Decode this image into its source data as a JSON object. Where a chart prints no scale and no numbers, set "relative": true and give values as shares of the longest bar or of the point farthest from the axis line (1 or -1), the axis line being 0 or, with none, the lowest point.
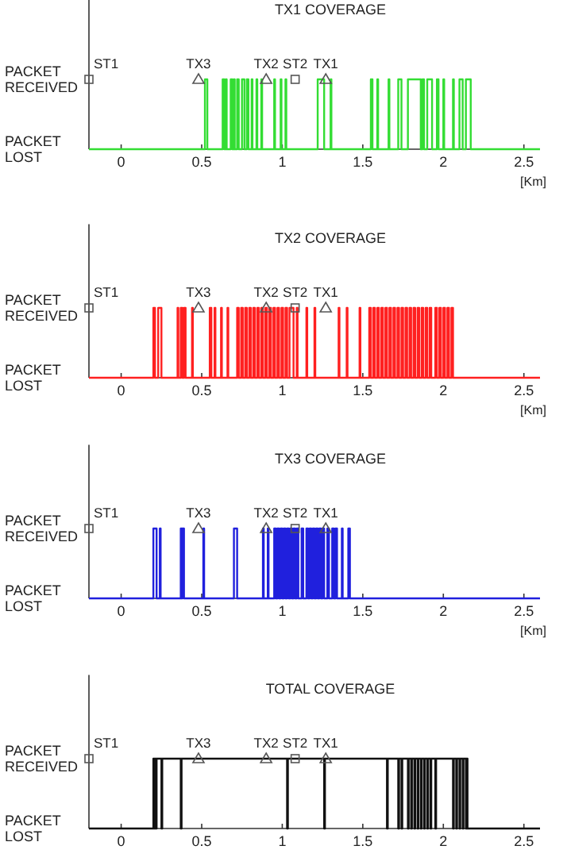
{
  "chart_data": [
    {
      "type": "step",
      "title": "TX1 COVERAGE",
      "xlabel": "[Km]",
      "xlim": [
        -0.2,
        2.6
      ],
      "xticks": [
        0,
        0.5,
        1,
        1.5,
        2,
        2.5
      ],
      "relative": true,
      "annotations": [
        "PACKET RECEIVED",
        "PACKET LOST"
      ],
      "series": [
        {
          "color": "#33dd33",
          "x": [
            -0.2,
            0.52,
            0.535,
            0.63,
            0.64,
            0.65,
            0.655,
            0.68,
            0.69,
            0.7,
            0.705,
            0.72,
            0.73,
            0.75,
            0.765,
            0.78,
            0.79,
            0.81,
            0.815,
            0.84,
            0.845,
            0.87,
            0.875,
            0.95,
            0.955,
            0.99,
            0.995,
            1.02,
            1.025,
            1.22,
            1.26,
            1.3,
            1.305,
            1.55,
            1.56,
            1.59,
            1.595,
            1.66,
            1.665,
            1.72,
            1.74,
            1.78,
            1.86,
            1.87,
            1.88,
            1.9,
            1.93,
            1.96,
            1.97,
            2.0,
            2.005,
            2.06,
            2.065,
            2.1,
            2.12,
            2.14,
            2.17,
            2.6
          ],
          "values": [
            0,
            1,
            0,
            1,
            0,
            1,
            0,
            1,
            0,
            1,
            0,
            1,
            0,
            1,
            0,
            1,
            0,
            1,
            0,
            1,
            0,
            1,
            0,
            1,
            0,
            1,
            0,
            1,
            0,
            1,
            0,
            1,
            0,
            1,
            0,
            1,
            0,
            1,
            0,
            1,
            0,
            1,
            0,
            1,
            0,
            1,
            0,
            1,
            0,
            1,
            0,
            1,
            0,
            1,
            0,
            1,
            0,
            0
          ]
        },
        {
          "type": "scatter",
          "name": "ST1",
          "marker": "square",
          "color": "#555555",
          "x": [
            -0.2
          ],
          "values": [
            1
          ]
        },
        {
          "type": "scatter",
          "name": "TX3",
          "marker": "triangle",
          "color": "#555555",
          "x": [
            0.48
          ],
          "values": [
            1
          ]
        },
        {
          "type": "scatter",
          "name": "TX2",
          "marker": "triangle",
          "color": "#555555",
          "x": [
            0.9
          ],
          "values": [
            1
          ]
        },
        {
          "type": "scatter",
          "name": "ST2",
          "marker": "square",
          "color": "#555555",
          "x": [
            1.08
          ],
          "values": [
            1
          ]
        },
        {
          "type": "scatter",
          "name": "TX1",
          "marker": "triangle",
          "color": "#555555",
          "x": [
            1.27
          ],
          "values": [
            1
          ]
        }
      ]
    },
    {
      "type": "step",
      "title": "TX2 COVERAGE",
      "xlabel": "[Km]",
      "xlim": [
        -0.2,
        2.6
      ],
      "xticks": [
        0,
        0.5,
        1,
        1.5,
        2,
        2.5
      ],
      "relative": true,
      "annotations": [
        "PACKET RECEIVED",
        "PACKET LOST"
      ],
      "series": [
        {
          "color": "#ff2020",
          "x": [
            -0.2,
            0.2,
            0.21,
            0.23,
            0.25,
            0.35,
            0.355,
            0.37,
            0.38,
            0.39,
            0.4,
            0.44,
            0.445,
            0.55,
            0.56,
            0.58,
            0.585,
            0.62,
            0.625,
            0.66,
            0.665,
            0.72,
            0.73,
            0.745,
            0.755,
            0.77,
            0.78,
            0.795,
            0.805,
            0.82,
            0.83,
            0.845,
            0.855,
            0.87,
            0.88,
            0.895,
            0.905,
            0.92,
            0.93,
            0.945,
            0.955,
            0.97,
            0.98,
            0.995,
            1.005,
            1.02,
            1.03,
            1.045,
            1.07,
            1.09,
            1.095,
            1.15,
            1.155,
            1.2,
            1.205,
            1.35,
            1.355,
            1.4,
            1.405,
            1.48,
            1.485,
            1.54,
            1.55,
            1.565,
            1.575,
            1.59,
            1.6,
            1.615,
            1.625,
            1.64,
            1.65,
            1.665,
            1.675,
            1.69,
            1.7,
            1.715,
            1.725,
            1.74,
            1.75,
            1.765,
            1.775,
            1.79,
            1.8,
            1.815,
            1.825,
            1.84,
            1.85,
            1.865,
            1.875,
            1.89,
            1.9,
            1.915,
            1.925,
            1.95,
            1.96,
            1.975,
            1.985,
            2.0,
            2.01,
            2.025,
            2.035,
            2.05,
            2.06,
            2.6
          ],
          "values": [
            0,
            1,
            0,
            1,
            0,
            1,
            0,
            1,
            0,
            1,
            0,
            1,
            0,
            1,
            0,
            1,
            0,
            1,
            0,
            1,
            0,
            1,
            0,
            1,
            0,
            1,
            0,
            1,
            0,
            1,
            0,
            1,
            0,
            1,
            0,
            1,
            0,
            1,
            0,
            1,
            0,
            1,
            0,
            1,
            0,
            1,
            0,
            1,
            0,
            1,
            0,
            1,
            0,
            1,
            0,
            1,
            0,
            1,
            0,
            1,
            0,
            1,
            0,
            1,
            0,
            1,
            0,
            1,
            0,
            1,
            0,
            1,
            0,
            1,
            0,
            1,
            0,
            1,
            0,
            1,
            0,
            1,
            0,
            1,
            0,
            1,
            0,
            1,
            0,
            1,
            0,
            1,
            0,
            1,
            0,
            1,
            0,
            1,
            0,
            1,
            0,
            1,
            0,
            0
          ]
        },
        {
          "type": "scatter",
          "name": "ST1",
          "marker": "square",
          "color": "#555555",
          "x": [
            -0.2
          ],
          "values": [
            1
          ]
        },
        {
          "type": "scatter",
          "name": "TX3",
          "marker": "triangle",
          "color": "#555555",
          "x": [
            0.48
          ],
          "values": [
            1
          ]
        },
        {
          "type": "scatter",
          "name": "TX2",
          "marker": "triangle",
          "color": "#555555",
          "x": [
            0.9
          ],
          "values": [
            1
          ]
        },
        {
          "type": "scatter",
          "name": "ST2",
          "marker": "square",
          "color": "#555555",
          "x": [
            1.08
          ],
          "values": [
            1
          ]
        },
        {
          "type": "scatter",
          "name": "TX1",
          "marker": "triangle",
          "color": "#555555",
          "x": [
            1.27
          ],
          "values": [
            1
          ]
        }
      ]
    },
    {
      "type": "step",
      "title": "TX3 COVERAGE",
      "xlabel": "[Km]",
      "xlim": [
        -0.2,
        2.6
      ],
      "xticks": [
        0,
        0.5,
        1,
        1.5,
        2,
        2.5
      ],
      "relative": true,
      "annotations": [
        "PACKET RECEIVED",
        "PACKET LOST"
      ],
      "series": [
        {
          "color": "#2020dd",
          "x": [
            -0.2,
            0.2,
            0.22,
            0.24,
            0.245,
            0.37,
            0.375,
            0.38,
            0.39,
            0.51,
            0.515,
            0.7,
            0.72,
            0.88,
            0.885,
            0.91,
            0.915,
            0.95,
            0.96,
            0.97,
            0.98,
            0.99,
            1.0,
            1.01,
            1.02,
            1.03,
            1.04,
            1.05,
            1.06,
            1.07,
            1.08,
            1.09,
            1.1,
            1.12,
            1.13,
            1.15,
            1.16,
            1.17,
            1.18,
            1.19,
            1.2,
            1.21,
            1.22,
            1.23,
            1.24,
            1.25,
            1.26,
            1.28,
            1.29,
            1.31,
            1.32,
            1.33,
            1.34,
            1.37,
            1.375,
            1.41,
            1.42,
            2.6
          ],
          "values": [
            0,
            1,
            0,
            1,
            0,
            1,
            0,
            1,
            0,
            1,
            0,
            1,
            0,
            1,
            0,
            1,
            0,
            1,
            0,
            1,
            0,
            1,
            0,
            1,
            0,
            1,
            0,
            1,
            0,
            1,
            0,
            1,
            0,
            1,
            0,
            1,
            0,
            1,
            0,
            1,
            0,
            1,
            0,
            1,
            0,
            1,
            0,
            1,
            0,
            1,
            0,
            1,
            0,
            1,
            0,
            1,
            0,
            0
          ]
        },
        {
          "type": "scatter",
          "name": "ST1",
          "marker": "square",
          "color": "#555555",
          "x": [
            -0.2
          ],
          "values": [
            1
          ]
        },
        {
          "type": "scatter",
          "name": "TX3",
          "marker": "triangle",
          "color": "#555555",
          "x": [
            0.48
          ],
          "values": [
            1
          ]
        },
        {
          "type": "scatter",
          "name": "TX2",
          "marker": "triangle",
          "color": "#555555",
          "x": [
            0.9
          ],
          "values": [
            1
          ]
        },
        {
          "type": "scatter",
          "name": "ST2",
          "marker": "square",
          "color": "#555555",
          "x": [
            1.08
          ],
          "values": [
            1
          ]
        },
        {
          "type": "scatter",
          "name": "TX1",
          "marker": "triangle",
          "color": "#555555",
          "x": [
            1.27
          ],
          "values": [
            1
          ]
        }
      ]
    },
    {
      "type": "step",
      "title": "TOTAL COVERAGE",
      "xlim": [
        -0.2,
        2.6
      ],
      "xticks": [
        0,
        0.5,
        1,
        1.5,
        2,
        2.5
      ],
      "relative": true,
      "annotations": [
        "PACKET RECEIVED",
        "PACKET LOST"
      ],
      "series": [
        {
          "color": "#111111",
          "x": [
            -0.2,
            0.2,
            0.205,
            0.21,
            0.215,
            0.22,
            0.25,
            0.255,
            0.37,
            0.375,
            1.03,
            1.035,
            1.26,
            1.265,
            1.65,
            1.655,
            1.72,
            1.725,
            1.74,
            1.745,
            1.78,
            1.785,
            1.8,
            1.805,
            1.82,
            1.825,
            1.84,
            1.845,
            1.86,
            1.865,
            1.88,
            1.885,
            1.9,
            1.905,
            1.92,
            1.925,
            1.95,
            1.955,
            2.06,
            2.065,
            2.08,
            2.085,
            2.1,
            2.105,
            2.12,
            2.125,
            2.14,
            2.145,
            2.15,
            2.6
          ],
          "values": [
            0,
            1,
            0,
            1,
            0,
            1,
            0,
            1,
            0,
            1,
            0,
            1,
            0,
            1,
            0,
            1,
            0,
            1,
            0,
            1,
            0,
            1,
            0,
            1,
            0,
            1,
            0,
            1,
            0,
            1,
            0,
            1,
            0,
            1,
            0,
            1,
            0,
            1,
            0,
            1,
            0,
            1,
            0,
            1,
            0,
            1,
            0,
            1,
            0,
            0
          ]
        },
        {
          "type": "scatter",
          "name": "ST1",
          "marker": "square",
          "color": "#555555",
          "x": [
            -0.2
          ],
          "values": [
            1
          ]
        },
        {
          "type": "scatter",
          "name": "TX3",
          "marker": "triangle",
          "color": "#555555",
          "x": [
            0.48
          ],
          "values": [
            1
          ]
        },
        {
          "type": "scatter",
          "name": "TX2",
          "marker": "triangle",
          "color": "#555555",
          "x": [
            0.9
          ],
          "values": [
            1
          ]
        },
        {
          "type": "scatter",
          "name": "ST2",
          "marker": "square",
          "color": "#555555",
          "x": [
            1.08
          ],
          "values": [
            1
          ]
        },
        {
          "type": "scatter",
          "name": "TX1",
          "marker": "triangle",
          "color": "#555555",
          "x": [
            1.27
          ],
          "values": [
            1
          ]
        }
      ]
    }
  ]
}
